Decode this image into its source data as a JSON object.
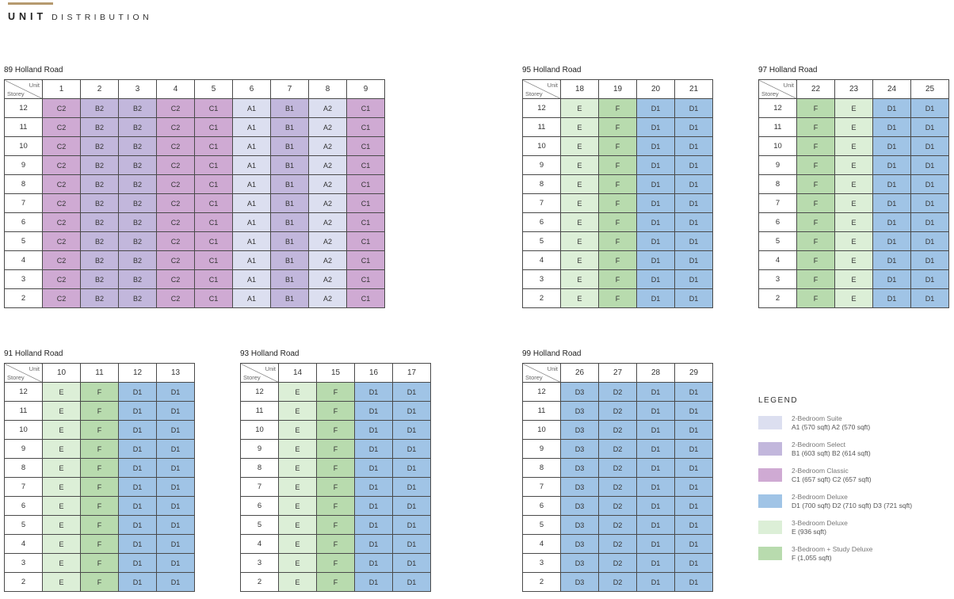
{
  "header": {
    "title_bold": "UNIT",
    "title_light": "DISTRIBUTION"
  },
  "corner": {
    "unit": "Unit",
    "storey": "Storey"
  },
  "storeys": [
    "12",
    "11",
    "10",
    "9",
    "8",
    "7",
    "6",
    "5",
    "4",
    "3",
    "2"
  ],
  "colors": {
    "A": "#dcdff0",
    "B": "#c2b7dc",
    "C": "#cfaad3",
    "D": "#a0c4e6",
    "E": "#dcefd7",
    "F": "#b8dbae"
  },
  "blocks": [
    {
      "id": "89",
      "title": "89 Holland Road",
      "units": [
        "1",
        "2",
        "3",
        "4",
        "5",
        "6",
        "7",
        "8",
        "9"
      ],
      "types": [
        "C2",
        "B2",
        "B2",
        "C2",
        "C1",
        "A1",
        "B1",
        "A2",
        "C1"
      ]
    },
    {
      "id": "95",
      "title": "95 Holland Road",
      "units": [
        "18",
        "19",
        "20",
        "21"
      ],
      "types": [
        "E",
        "F",
        "D1",
        "D1"
      ]
    },
    {
      "id": "97",
      "title": "97 Holland Road",
      "units": [
        "22",
        "23",
        "24",
        "25"
      ],
      "types": [
        "F",
        "E",
        "D1",
        "D1"
      ]
    },
    {
      "id": "91",
      "title": "91 Holland Road",
      "units": [
        "10",
        "11",
        "12",
        "13"
      ],
      "types": [
        "E",
        "F",
        "D1",
        "D1"
      ]
    },
    {
      "id": "93",
      "title": "93 Holland Road",
      "units": [
        "14",
        "15",
        "16",
        "17"
      ],
      "types": [
        "E",
        "F",
        "D1",
        "D1"
      ]
    },
    {
      "id": "99",
      "title": "99 Holland Road",
      "units": [
        "26",
        "27",
        "28",
        "29"
      ],
      "types": [
        "D3",
        "D2",
        "D1",
        "D1"
      ]
    }
  ],
  "legend": {
    "title": "LEGEND",
    "items": [
      {
        "color": "#dcdff0",
        "name": "2-Bedroom Suite",
        "detail": "A1 (570 sqft)   A2 (570 sqft)"
      },
      {
        "color": "#c2b7dc",
        "name": "2-Bedroom Select",
        "detail": "B1 (603 sqft)   B2 (614 sqft)"
      },
      {
        "color": "#cfaad3",
        "name": "2-Bedroom Classic",
        "detail": "C1 (657 sqft)   C2 (657 sqft)"
      },
      {
        "color": "#a0c4e6",
        "name": "2-Bedroom Deluxe",
        "detail": "D1 (700 sqft)   D2 (710 sqft)   D3 (721 sqft)"
      },
      {
        "color": "#dcefd7",
        "name": "3-Bedroom Deluxe",
        "detail": "E (936 sqft)"
      },
      {
        "color": "#b8dbae",
        "name": "3-Bedroom + Study Deluxe",
        "detail": "F (1,055 sqft)"
      }
    ]
  }
}
